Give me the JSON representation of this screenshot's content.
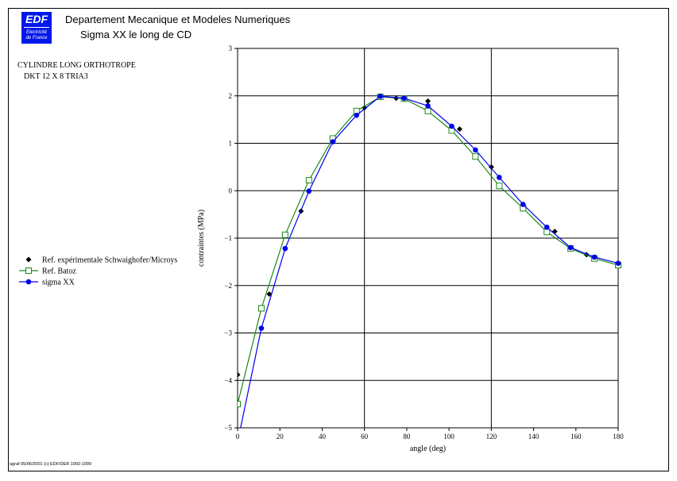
{
  "header": {
    "logo_text": "EDF",
    "logo_line1": "Electricité",
    "logo_line2": "de France",
    "title": "Departement Mecanique et Modeles Numeriques",
    "subtitle": "Sigma XX le long de CD"
  },
  "case": {
    "line1": "CYLINDRE LONG ORTHOTROPE",
    "line2": "DKT 12 X 8 TRIA3"
  },
  "footer": "agraf 05/06/2001 (c) EDF/DER 1992-1999",
  "colors": {
    "experimental": "#000000",
    "batoz": "#1a8a1a",
    "sigma": "#0000ee"
  },
  "chart_data": {
    "type": "line",
    "title": "",
    "xlabel": "angle (deg)",
    "ylabel": "contraintes (MPa)",
    "xlim": [
      0,
      180
    ],
    "ylim": [
      -5,
      3
    ],
    "xticks": [
      0,
      20,
      40,
      60,
      80,
      100,
      120,
      140,
      160,
      180
    ],
    "yticks": [
      -5,
      -4,
      -3,
      -2,
      -1,
      0,
      1,
      2,
      3
    ],
    "xgrid": [
      0,
      60,
      120,
      180
    ],
    "ygrid": [
      -5,
      -4,
      -3,
      -2,
      -1,
      0,
      1,
      2,
      3
    ],
    "legend_position": "left",
    "series": [
      {
        "name": "Ref. expérimentale Schwaighofer/Microys",
        "style": "markers",
        "marker": "diamond",
        "x": [
          0,
          15,
          30,
          45,
          60,
          75,
          90,
          105,
          120,
          135,
          150,
          165,
          180
        ],
        "y": [
          -3.88,
          -2.18,
          -0.43,
          1.05,
          1.75,
          1.95,
          1.89,
          1.3,
          0.5,
          -0.35,
          -0.86,
          -1.35,
          -1.53
        ]
      },
      {
        "name": "Ref. Batoz",
        "style": "line+markers",
        "marker": "square",
        "x": [
          0,
          11.25,
          22.5,
          33.75,
          45,
          56.25,
          67.5,
          78.75,
          90,
          101.25,
          112.5,
          123.75,
          135,
          146.25,
          157.5,
          168.75,
          180
        ],
        "y": [
          -4.5,
          -2.48,
          -0.93,
          0.22,
          1.1,
          1.68,
          1.98,
          1.94,
          1.68,
          1.27,
          0.72,
          0.1,
          -0.37,
          -0.87,
          -1.22,
          -1.43,
          -1.57
        ]
      },
      {
        "name": "sigma XX",
        "style": "line+markers",
        "marker": "circle",
        "x": [
          0,
          11.25,
          22.5,
          33.75,
          45,
          56.25,
          67.5,
          78.75,
          90,
          101.25,
          112.5,
          123.75,
          135,
          146.25,
          157.5,
          168.75,
          180
        ],
        "y": [
          -5.3,
          -2.9,
          -1.22,
          -0.01,
          1.03,
          1.59,
          1.99,
          1.95,
          1.79,
          1.36,
          0.86,
          0.28,
          -0.29,
          -0.77,
          -1.2,
          -1.4,
          -1.53
        ]
      }
    ]
  }
}
